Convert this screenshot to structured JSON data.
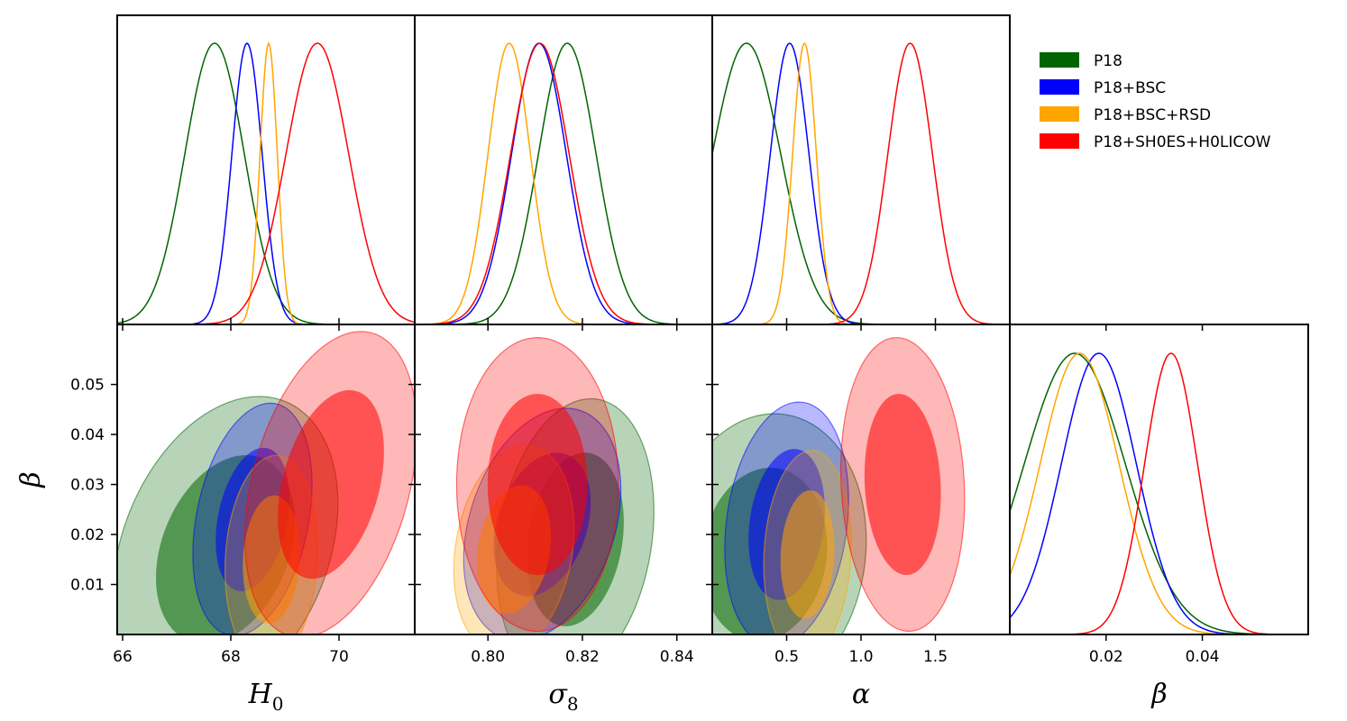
{
  "chart_data": {
    "type": "corner",
    "series": [
      {
        "name": "P18",
        "color": "#006400"
      },
      {
        "name": "P18+BSC",
        "color": "#0000ff"
      },
      {
        "name": "P18+BSC+RSD",
        "color": "#ffa500"
      },
      {
        "name": "P18+SH0ES+H0LICOW",
        "color": "#ff0000"
      }
    ],
    "parameters": [
      {
        "key": "H0",
        "label": "H",
        "sub": "0",
        "range": [
          65.9,
          71.4
        ],
        "ticks": [
          66,
          68,
          70
        ],
        "tick_labels": [
          "66",
          "68",
          "70"
        ]
      },
      {
        "key": "sigma8",
        "label": "σ",
        "sub": "8",
        "range": [
          0.7845,
          0.8475
        ],
        "ticks": [
          0.8,
          0.82,
          0.84
        ],
        "tick_labels": [
          "0.80",
          "0.82",
          "0.84"
        ]
      },
      {
        "key": "alpha",
        "label": "α",
        "sub": "",
        "range": [
          0.0,
          2.0
        ],
        "ticks": [
          0.5,
          1.0,
          1.5
        ],
        "tick_labels": [
          "0.5",
          "1.0",
          "1.5"
        ]
      },
      {
        "key": "beta",
        "label": "β",
        "sub": "",
        "range": [
          0.0,
          0.062
        ],
        "ticks": [
          0.02,
          0.04
        ],
        "tick_labels": [
          "0.02",
          "0.04"
        ]
      }
    ],
    "beta_axis": {
      "label": "β",
      "range": [
        0.0,
        0.062
      ],
      "ticks": [
        0.01,
        0.02,
        0.03,
        0.04,
        0.05
      ],
      "tick_labels": [
        "0.01",
        "0.02",
        "0.03",
        "0.04",
        "0.05"
      ]
    },
    "marginals": {
      "H0": [
        {
          "series": "P18",
          "mean": 67.7,
          "sd": 0.55
        },
        {
          "series": "P18+BSC",
          "mean": 68.3,
          "sd": 0.28
        },
        {
          "series": "P18+BSC+RSD",
          "mean": 68.7,
          "sd": 0.16
        },
        {
          "series": "P18+SH0ES+H0LICOW",
          "mean": 69.6,
          "sd": 0.58
        }
      ],
      "sigma8": [
        {
          "series": "P18",
          "mean": 0.8168,
          "sd": 0.0061
        },
        {
          "series": "P18+BSC",
          "mean": 0.8108,
          "sd": 0.0058
        },
        {
          "series": "P18+BSC+RSD",
          "mean": 0.8045,
          "sd": 0.0045
        },
        {
          "series": "P18+SH0ES+H0LICOW",
          "mean": 0.811,
          "sd": 0.0062
        }
      ],
      "alpha": [
        {
          "series": "P18",
          "mean": 0.23,
          "sd": 0.23
        },
        {
          "series": "P18+BSC",
          "mean": 0.52,
          "sd": 0.13
        },
        {
          "series": "P18+BSC+RSD",
          "mean": 0.62,
          "sd": 0.08
        },
        {
          "series": "P18+SH0ES+H0LICOW",
          "mean": 1.33,
          "sd": 0.15
        }
      ],
      "beta": [
        {
          "series": "P18",
          "mean": 0.0135,
          "sd": 0.0105
        },
        {
          "series": "P18+BSC",
          "mean": 0.0185,
          "sd": 0.0078
        },
        {
          "series": "P18+BSC+RSD",
          "mean": 0.0145,
          "sd": 0.0082
        },
        {
          "series": "P18+SH0ES+H0LICOW",
          "mean": 0.0335,
          "sd": 0.0055
        }
      ]
    },
    "joint_with_beta": {
      "H0": [
        {
          "series": "P18",
          "cx": 67.9,
          "cy": 0.017,
          "sx": 0.85,
          "sy": 0.0125,
          "rho": 0.3
        },
        {
          "series": "P18+BSC",
          "cx": 68.4,
          "cy": 0.023,
          "sx": 0.45,
          "sy": 0.0095,
          "rho": 0.3
        },
        {
          "series": "P18+BSC+RSD",
          "cx": 68.75,
          "cy": 0.015,
          "sx": 0.35,
          "sy": 0.0085,
          "rho": 0.1
        },
        {
          "series": "P18+SH0ES+H0LICOW",
          "cx": 69.85,
          "cy": 0.03,
          "sx": 0.65,
          "sy": 0.0125,
          "rho": 0.35
        }
      ],
      "sigma8": [
        {
          "series": "P18",
          "cx": 0.8185,
          "cy": 0.019,
          "sx": 0.0068,
          "sy": 0.0115,
          "rho": 0.2
        },
        {
          "series": "P18+BSC",
          "cx": 0.8115,
          "cy": 0.022,
          "sx": 0.0068,
          "sy": 0.0095,
          "rho": 0.3
        },
        {
          "series": "P18+BSC+RSD",
          "cx": 0.8055,
          "cy": 0.017,
          "sx": 0.0052,
          "sy": 0.0085,
          "rho": 0.2
        },
        {
          "series": "P18+SH0ES+H0LICOW",
          "cx": 0.8105,
          "cy": 0.03,
          "sx": 0.007,
          "sy": 0.012,
          "rho": 0.0
        }
      ],
      "alpha": [
        {
          "series": "P18",
          "cx": 0.35,
          "cy": 0.016,
          "sx": 0.28,
          "sy": 0.0115,
          "rho": 0.1
        },
        {
          "series": "P18+BSC",
          "cx": 0.5,
          "cy": 0.022,
          "sx": 0.17,
          "sy": 0.01,
          "rho": 0.2
        },
        {
          "series": "P18+BSC+RSD",
          "cx": 0.64,
          "cy": 0.016,
          "sx": 0.12,
          "sy": 0.0085,
          "rho": 0.1
        },
        {
          "series": "P18+SH0ES+H0LICOW",
          "cx": 1.28,
          "cy": 0.03,
          "sx": 0.17,
          "sy": 0.012,
          "rho": -0.1
        }
      ]
    },
    "contour_levels": [
      "68%",
      "95%"
    ]
  }
}
